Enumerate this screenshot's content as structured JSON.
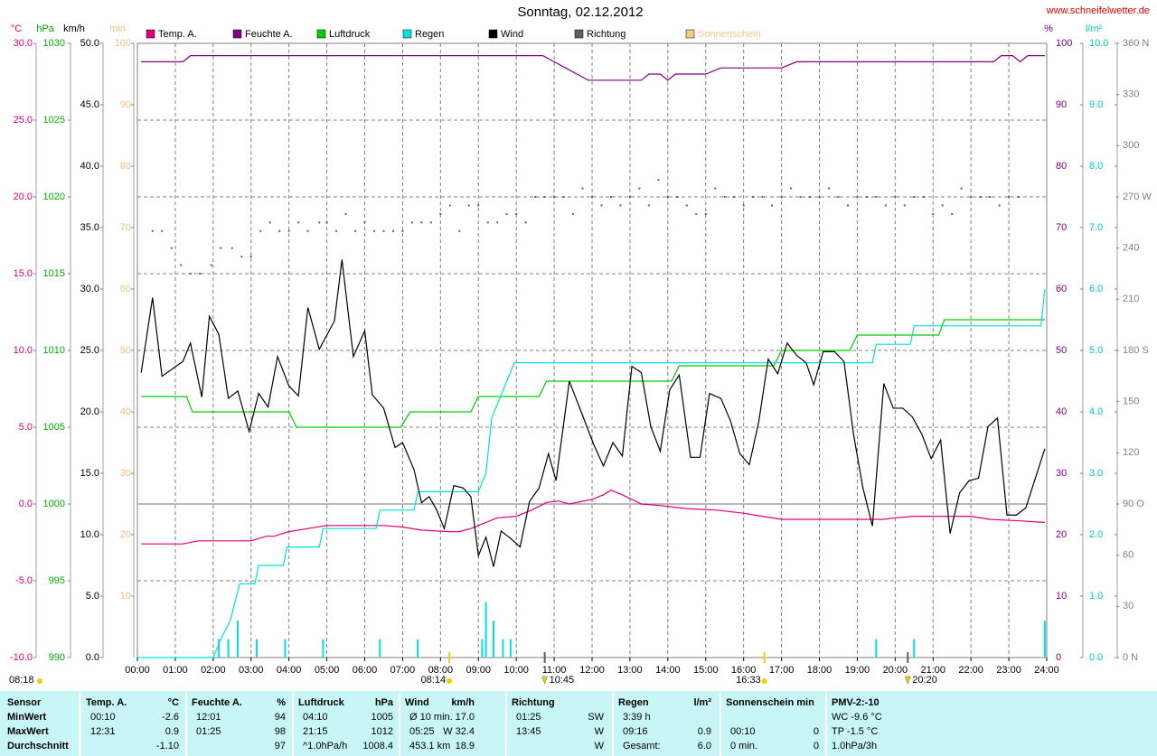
{
  "chart_data": {
    "type": "line",
    "title": "Sonntag, 02.12.2012",
    "source": "www.schneifelwetter.de",
    "grid": true,
    "xlim": [
      0,
      24
    ],
    "xticks": [
      {
        "value": 0,
        "label": "00:00"
      },
      {
        "value": 1,
        "label": "01:00"
      },
      {
        "value": 2,
        "label": "02:00"
      },
      {
        "value": 3,
        "label": "03:00"
      },
      {
        "value": 4,
        "label": "04:00"
      },
      {
        "value": 5,
        "label": "05:00"
      },
      {
        "value": 6,
        "label": "06:00"
      },
      {
        "value": 7,
        "label": "07:00"
      },
      {
        "value": 8,
        "label": "08:00"
      },
      {
        "value": 9,
        "label": "09:00"
      },
      {
        "value": 10,
        "label": "10:00"
      },
      {
        "value": 11,
        "label": "11:00"
      },
      {
        "value": 12,
        "label": "12:00"
      },
      {
        "value": 13,
        "label": "13:00"
      },
      {
        "value": 14,
        "label": "14:00"
      },
      {
        "value": 15,
        "label": "15:00"
      },
      {
        "value": 16,
        "label": "16:00"
      },
      {
        "value": 17,
        "label": "17:00"
      },
      {
        "value": 18,
        "label": "18:00"
      },
      {
        "value": 19,
        "label": "19:00"
      },
      {
        "value": 20,
        "label": "20:00"
      },
      {
        "value": 21,
        "label": "21:00"
      },
      {
        "value": 22,
        "label": "22:00"
      },
      {
        "value": 23,
        "label": "23:00"
      },
      {
        "value": 24,
        "label": "24:00"
      }
    ],
    "axes": [
      {
        "unit": "°C",
        "color": "#e0007a",
        "lim": [
          -10,
          30
        ],
        "ticks": [
          {
            "value": -10,
            "label": "-10.0"
          },
          {
            "value": -5,
            "label": "-5.0"
          },
          {
            "value": 0,
            "label": "0.0"
          },
          {
            "value": 5,
            "label": "5.0"
          },
          {
            "value": 10,
            "label": "10.0"
          },
          {
            "value": 15,
            "label": "15.0"
          },
          {
            "value": 20,
            "label": "20.0"
          },
          {
            "value": 25,
            "label": "25.0"
          },
          {
            "value": 30,
            "label": "30.0"
          }
        ]
      },
      {
        "unit": "hPa",
        "color": "#00b000",
        "lim": [
          990,
          1030
        ],
        "ticks": [
          990,
          995,
          1000,
          1005,
          1010,
          1015,
          1020,
          1025,
          1030
        ]
      },
      {
        "unit": "km/h",
        "color": "#000000",
        "lim": [
          0,
          50
        ],
        "ticks": [
          {
            "value": 0,
            "label": "0.0"
          },
          {
            "value": 5,
            "label": "5.0"
          },
          {
            "value": 10,
            "label": "10.0"
          },
          {
            "value": 15,
            "label": "15.0"
          },
          {
            "value": 20,
            "label": "20.0"
          },
          {
            "value": 25,
            "label": "25.0"
          },
          {
            "value": 30,
            "label": "30.0"
          },
          {
            "value": 35,
            "label": "35.0"
          },
          {
            "value": 40,
            "label": "40.0"
          },
          {
            "value": 45,
            "label": "45.0"
          },
          {
            "value": 50,
            "label": "50.0"
          }
        ]
      },
      {
        "unit": "min",
        "color": "#f0c080",
        "lim": [
          0,
          100
        ],
        "ticks": [
          10,
          20,
          30,
          40,
          50,
          60,
          70,
          80,
          90,
          100
        ]
      },
      {
        "unit": "%",
        "color": "#800080",
        "lim": [
          0,
          100
        ],
        "ticks": [
          0,
          10,
          20,
          30,
          40,
          50,
          60,
          70,
          80,
          90,
          100
        ]
      },
      {
        "unit": "l/m²",
        "color": "#00c8c8",
        "lim": [
          0,
          10
        ],
        "ticks": [
          {
            "value": 0,
            "label": "0.0"
          },
          {
            "value": 1,
            "label": "1.0"
          },
          {
            "value": 2,
            "label": "2.0"
          },
          {
            "value": 3,
            "label": "3.0"
          },
          {
            "value": 4,
            "label": "4.0"
          },
          {
            "value": 5,
            "label": "5.0"
          },
          {
            "value": 6,
            "label": "6.0"
          },
          {
            "value": 7,
            "label": "7.0"
          },
          {
            "value": 8,
            "label": "8.0"
          },
          {
            "value": 9,
            "label": "9.0"
          },
          {
            "value": 10,
            "label": "10.0"
          }
        ]
      },
      {
        "color": "#808080",
        "lim": [
          0,
          360
        ],
        "ticks": [
          {
            "value": 0,
            "label": "0 N"
          },
          30,
          60,
          {
            "value": 90,
            "label": "90 O"
          },
          120,
          150,
          {
            "value": 180,
            "label": "180 S"
          },
          210,
          240,
          {
            "value": 270,
            "label": "270 W"
          },
          300,
          330,
          {
            "value": 360,
            "label": "360 N"
          }
        ]
      }
    ],
    "series": [
      {
        "name": "Temp. A.",
        "color": "#e0007a",
        "axis": 0,
        "style": "line",
        "x": [
          0.1,
          1.2,
          1.6,
          3.0,
          3.4,
          3.6,
          4.0,
          4.5,
          5.0,
          6.5,
          7.0,
          7.5,
          8.2,
          8.5,
          8.8,
          9.2,
          9.5,
          10.0,
          10.4,
          10.8,
          11.1,
          11.4,
          12.0,
          12.3,
          12.5,
          12.8,
          13.3,
          13.8,
          14.5,
          15.3,
          16.0,
          16.5,
          17.0,
          19.7,
          20.0,
          20.5,
          22.0,
          22.5,
          23.3,
          23.95
        ],
        "values": [
          -2.6,
          -2.6,
          -2.4,
          -2.4,
          -2.1,
          -2.1,
          -1.8,
          -1.6,
          -1.4,
          -1.4,
          -1.5,
          -1.7,
          -1.8,
          -1.8,
          -1.6,
          -1.2,
          -0.9,
          -0.8,
          -0.4,
          0.1,
          0.2,
          0.0,
          0.3,
          0.6,
          0.9,
          0.6,
          0.0,
          -0.1,
          -0.3,
          -0.4,
          -0.6,
          -0.8,
          -1.0,
          -1.0,
          -0.9,
          -0.8,
          -0.8,
          -1.0,
          -1.1,
          -1.2
        ]
      },
      {
        "name": "Feuchte A.",
        "color": "#800080",
        "axis": 4,
        "style": "line",
        "x": [
          0.1,
          1.2,
          1.4,
          10.7,
          11.0,
          11.3,
          11.6,
          11.9,
          13.3,
          13.5,
          13.8,
          14.0,
          14.2,
          15.0,
          15.4,
          17.0,
          17.4,
          22.6,
          22.8,
          23.1,
          23.3,
          23.5,
          23.95
        ],
        "values": [
          97,
          97,
          98,
          98,
          97,
          96,
          95,
          94,
          94,
          95,
          95,
          94,
          95,
          95,
          96,
          96,
          97,
          97,
          98,
          98,
          97,
          98,
          98
        ]
      },
      {
        "name": "Luftdruck",
        "color": "#00d000",
        "axis": 1,
        "style": "line",
        "x": [
          0.1,
          1.3,
          1.45,
          4.0,
          4.2,
          6.95,
          7.2,
          8.8,
          9.0,
          10.6,
          10.8,
          14.1,
          14.3,
          16.8,
          17.0,
          18.8,
          19.0,
          21.15,
          21.3,
          23.95
        ],
        "values": [
          1007,
          1007,
          1006,
          1006,
          1005,
          1005,
          1006,
          1006,
          1007,
          1007,
          1008,
          1008,
          1009,
          1009,
          1010,
          1010,
          1011,
          1011,
          1012,
          1012
        ]
      },
      {
        "name": "Regen",
        "color": "#00e0e0",
        "axis": 5,
        "style": "line",
        "x": [
          0,
          2.0,
          2.2,
          2.45,
          2.7,
          3.1,
          3.2,
          3.85,
          3.95,
          4.8,
          4.9,
          6.3,
          6.4,
          7.3,
          7.4,
          9.0,
          9.2,
          9.35,
          9.55,
          9.75,
          9.95,
          19.4,
          19.5,
          20.4,
          20.5,
          23.85,
          23.95
        ],
        "values": [
          0,
          0,
          0.3,
          0.6,
          1.2,
          1.2,
          1.5,
          1.5,
          1.8,
          1.8,
          2.1,
          2.1,
          2.4,
          2.4,
          2.7,
          2.7,
          3.0,
          3.9,
          4.2,
          4.5,
          4.8,
          4.8,
          5.1,
          5.1,
          5.4,
          5.4,
          6.0
        ],
        "bars": {
          "x": [
            2.15,
            2.4,
            2.65,
            3.15,
            3.9,
            4.9,
            6.4,
            7.4,
            9.1,
            9.2,
            9.4,
            9.65,
            9.85,
            19.5,
            20.5,
            23.95
          ],
          "values": [
            0.3,
            0.3,
            0.6,
            0.3,
            0.3,
            0.3,
            0.3,
            0.3,
            0.3,
            0.9,
            0.6,
            0.3,
            0.3,
            0.3,
            0.3,
            0.6
          ]
        }
      },
      {
        "name": "Wind",
        "color": "#000000",
        "axis": 2,
        "style": "line",
        "x": [
          0.1,
          0.4,
          0.65,
          1.2,
          1.4,
          1.7,
          1.9,
          2.15,
          2.4,
          2.65,
          2.95,
          3.2,
          3.45,
          3.7,
          4.0,
          4.25,
          4.5,
          4.8,
          5.2,
          5.4,
          5.7,
          6.0,
          6.2,
          6.5,
          6.8,
          7.0,
          7.3,
          7.5,
          7.7,
          7.9,
          8.1,
          8.35,
          8.6,
          8.8,
          9.0,
          9.2,
          9.4,
          9.6,
          9.85,
          10.1,
          10.35,
          10.6,
          10.85,
          11.05,
          11.4,
          11.7,
          12.05,
          12.3,
          12.55,
          12.8,
          13.05,
          13.3,
          13.55,
          13.8,
          14.05,
          14.3,
          14.6,
          14.85,
          15.1,
          15.4,
          15.65,
          15.9,
          16.15,
          16.4,
          16.65,
          16.9,
          17.15,
          17.4,
          17.65,
          17.85,
          18.1,
          18.4,
          18.65,
          18.9,
          19.15,
          19.4,
          19.7,
          19.95,
          20.2,
          20.45,
          20.7,
          20.95,
          21.2,
          21.45,
          21.7,
          21.95,
          22.2,
          22.45,
          22.7,
          22.95,
          23.2,
          23.45,
          23.95
        ],
        "values": [
          23.2,
          29.3,
          22.9,
          24.1,
          25.6,
          21.2,
          27.8,
          26.3,
          21.1,
          21.7,
          18.4,
          21.5,
          20.4,
          24.5,
          22.1,
          21.3,
          28.5,
          25.1,
          27.4,
          32.4,
          24.5,
          26.6,
          21.4,
          20.3,
          17.1,
          17.5,
          15.3,
          12.6,
          13.1,
          12.0,
          10.5,
          14.0,
          13.8,
          13.1,
          8.3,
          9.8,
          7.4,
          10.3,
          9.7,
          9.0,
          12.7,
          13.8,
          16.6,
          14.4,
          22.5,
          20.1,
          17.3,
          15.6,
          17.5,
          16.4,
          23.7,
          23.2,
          18.8,
          16.8,
          21.8,
          23.0,
          16.3,
          16.3,
          21.5,
          21.1,
          19.3,
          16.6,
          15.7,
          19.2,
          24.3,
          23.1,
          25.6,
          24.6,
          24.0,
          22.2,
          24.9,
          24.9,
          24.1,
          18.2,
          13.8,
          10.7,
          22.3,
          20.3,
          20.3,
          19.6,
          18.2,
          16.2,
          17.7,
          10.1,
          13.4,
          14.4,
          14.6,
          18.8,
          19.5,
          11.6,
          11.6,
          12.2,
          17.0
        ]
      },
      {
        "name": "Richtung",
        "color": "#606060",
        "axis": 6,
        "style": "dots",
        "x": [
          0.4,
          0.65,
          0.9,
          1.15,
          1.4,
          1.65,
          1.95,
          2.2,
          2.5,
          2.75,
          3.0,
          3.25,
          3.5,
          3.75,
          4.0,
          4.25,
          4.5,
          4.8,
          5.0,
          5.25,
          5.5,
          5.75,
          6.0,
          6.25,
          6.5,
          6.75,
          7.0,
          7.25,
          7.5,
          7.75,
          8.0,
          8.25,
          8.5,
          8.75,
          9.0,
          9.25,
          9.5,
          9.75,
          10.0,
          10.25,
          10.5,
          10.75,
          11,
          11.25,
          11.5,
          11.75,
          12,
          12.25,
          12.5,
          12.75,
          13,
          13.25,
          13.5,
          13.75,
          14,
          14.25,
          14.5,
          14.75,
          15,
          15.25,
          15.5,
          15.75,
          16,
          16.25,
          16.5,
          16.75,
          17,
          17.25,
          17.5,
          17.75,
          18,
          18.25,
          18.5,
          18.75,
          19,
          19.25,
          19.5,
          19.75,
          20,
          20.25,
          20.5,
          20.75,
          21,
          21.25,
          21.5,
          21.75,
          22,
          22.25,
          22.5,
          22.75,
          23,
          23.25
        ],
        "values": [
          250,
          250,
          240,
          230,
          225,
          225,
          230,
          240,
          240,
          235,
          235,
          250,
          255,
          250,
          250,
          255,
          250,
          255,
          255,
          250,
          260,
          250,
          255,
          250,
          250,
          250,
          250,
          255,
          255,
          255,
          260,
          265,
          250,
          265,
          265,
          255,
          255,
          260,
          260,
          255,
          270,
          270,
          270,
          270,
          260,
          275,
          270,
          265,
          270,
          265,
          270,
          275,
          265,
          280,
          270,
          270,
          265,
          260,
          260,
          275,
          270,
          270,
          265,
          270,
          270,
          265,
          270,
          275,
          270,
          270,
          270,
          275,
          270,
          265,
          270,
          270,
          270,
          265,
          270,
          265,
          270,
          270,
          260,
          265,
          260,
          275,
          270,
          270,
          270,
          265,
          270,
          270
        ]
      },
      {
        "name": "Sonnenschein",
        "color": "#f8c888",
        "axis": 3,
        "style": "line",
        "x": [],
        "values": []
      }
    ],
    "sun": [
      {
        "time": 8.233,
        "label": "08:14"
      },
      {
        "time": 16.55,
        "label": "16:33"
      }
    ],
    "moon": [
      {
        "time": 10.75,
        "label": "10:45"
      },
      {
        "time": 20.333,
        "label": "20:20"
      }
    ],
    "corner_time": "08:18"
  },
  "table": {
    "sensor": "Sensor",
    "row_labels": [
      "MinWert",
      "MaxWert",
      "Durchschnitt"
    ],
    "groups": [
      {
        "name": "Temp. A.",
        "unit": "°C",
        "rows": [
          [
            "00:10",
            "-2.6"
          ],
          [
            "12:31",
            "0.9"
          ],
          [
            null,
            "-1.10"
          ]
        ]
      },
      {
        "name": "Feuchte A.",
        "unit": "%",
        "rows": [
          [
            "12:01",
            "94"
          ],
          [
            "01:25",
            "98"
          ],
          [
            null,
            "97"
          ]
        ]
      },
      {
        "name": "Luftdruck",
        "unit": "hPa",
        "rows": [
          [
            "04:10",
            "1005"
          ],
          [
            "21:15",
            "1012"
          ],
          [
            "^1.0hPa/h",
            "1008.4"
          ]
        ]
      },
      {
        "name": "Wind",
        "unit": "km/h",
        "rows": [
          [
            "Ø 10 min.",
            "17.0"
          ],
          [
            "05:25",
            "W 32.4"
          ],
          [
            "453.1 km",
            "18.9"
          ]
        ]
      },
      {
        "name": "Richtung",
        "unit": null,
        "rows": [
          [
            "01:25",
            "SW"
          ],
          [
            "13:45",
            "W"
          ],
          [
            null,
            "W"
          ]
        ]
      },
      {
        "name": "Regen",
        "unit": "l/m²",
        "rows": [
          [
            "3:39 h",
            null
          ],
          [
            "09:16",
            "0.9"
          ],
          [
            "Gesamt:",
            "6.0"
          ]
        ]
      },
      {
        "name": "Sonnenschein min",
        "unit": null,
        "rows": [
          [
            null,
            null
          ],
          [
            "00:10",
            "0"
          ],
          [
            "0 min.",
            "0"
          ]
        ]
      }
    ],
    "pmv": {
      "name": "PMV-2:-10",
      "rows": [
        "WC -9.6 °C",
        "TP -1.5 °C",
        "1.0hPa/3h"
      ]
    }
  }
}
